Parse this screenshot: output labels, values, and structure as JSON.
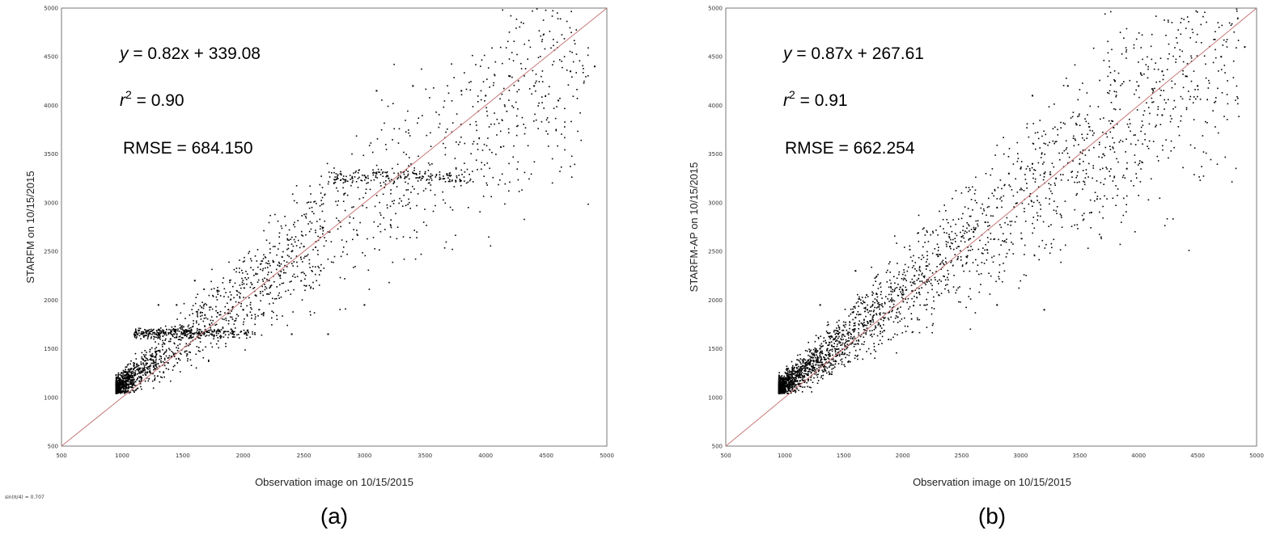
{
  "colors": {
    "reference_line": "#c87878",
    "points": "#000000",
    "frame": "#555555"
  },
  "footnote": "sin(π/4) = 0.707",
  "chart_data": [
    {
      "type": "scatter",
      "panel_label": "(a)",
      "xlabel": "Observation image on 10/15/2015",
      "ylabel": "STARFM on 10/15/2015",
      "xlim": [
        500,
        5000
      ],
      "ylim": [
        500,
        5000
      ],
      "xticks": [
        "500",
        "1000",
        "1500",
        "2000",
        "2500",
        "3000",
        "3500",
        "4000",
        "4500",
        "5000"
      ],
      "yticks": [
        "500",
        "1000",
        "1500",
        "2000",
        "2500",
        "3000",
        "3500",
        "4000",
        "4500",
        "5000"
      ],
      "reference_line": "1:1",
      "annotations": {
        "equation": {
          "lhs": "y",
          "rhs": " = 0.82x + 339.08"
        },
        "r2": {
          "lhs": "r",
          "sup": "2",
          "rhs": " = 0.90"
        },
        "rmse": "RMSE = 684.150"
      },
      "regression": {
        "slope": 0.82,
        "intercept": 339.08
      },
      "points_sample": [
        [
          950,
          1130
        ],
        [
          1000,
          1140
        ],
        [
          1050,
          1180
        ],
        [
          1100,
          1230
        ],
        [
          1150,
          1300
        ],
        [
          1200,
          1350
        ],
        [
          1250,
          1420
        ],
        [
          1300,
          1480
        ],
        [
          1350,
          1550
        ],
        [
          1400,
          1600
        ],
        [
          1450,
          1620
        ],
        [
          1500,
          1650
        ],
        [
          1600,
          1660
        ],
        [
          1700,
          1670
        ],
        [
          1800,
          1680
        ],
        [
          1900,
          1700
        ],
        [
          2000,
          1900
        ],
        [
          2100,
          2050
        ],
        [
          2200,
          2200
        ],
        [
          2300,
          2350
        ],
        [
          2400,
          2500
        ],
        [
          2500,
          2550
        ],
        [
          2600,
          2600
        ],
        [
          2700,
          2700
        ],
        [
          2800,
          2800
        ],
        [
          2900,
          3250
        ],
        [
          3000,
          3280
        ],
        [
          3100,
          3300
        ],
        [
          3200,
          3250
        ],
        [
          3300,
          3260
        ],
        [
          3500,
          3300
        ],
        [
          3700,
          3280
        ],
        [
          4000,
          4100
        ],
        [
          4200,
          4300
        ],
        [
          4400,
          4200
        ],
        [
          4700,
          4350
        ],
        [
          4900,
          4400
        ],
        [
          2400,
          1650
        ],
        [
          2700,
          1650
        ],
        [
          3000,
          1950
        ],
        [
          1300,
          1950
        ],
        [
          1600,
          2200
        ],
        [
          3100,
          4150
        ],
        [
          3400,
          4200
        ],
        [
          3800,
          4150
        ],
        [
          4600,
          4050
        ],
        [
          1100,
          1650
        ],
        [
          1450,
          1950
        ]
      ]
    },
    {
      "type": "scatter",
      "panel_label": "(b)",
      "xlabel": "Observation image on 10/15/2015",
      "ylabel": "STARFM-AP on 10/15/2015",
      "xlim": [
        500,
        5000
      ],
      "ylim": [
        500,
        5000
      ],
      "xticks": [
        "500",
        "1000",
        "1500",
        "2000",
        "2500",
        "3000",
        "3500",
        "4000",
        "4500",
        "5000"
      ],
      "yticks": [
        "500",
        "1000",
        "1500",
        "2000",
        "2500",
        "3000",
        "3500",
        "4000",
        "4500",
        "5000"
      ],
      "reference_line": "1:1",
      "annotations": {
        "equation": {
          "lhs": "y",
          "rhs": " = 0.87x + 267.61"
        },
        "r2": {
          "lhs": "r",
          "sup": "2",
          "rhs": " = 0.91"
        },
        "rmse": "RMSE = 662.254"
      },
      "regression": {
        "slope": 0.87,
        "intercept": 267.61
      },
      "points_sample": [
        [
          950,
          1130
        ],
        [
          1000,
          1160
        ],
        [
          1050,
          1200
        ],
        [
          1100,
          1260
        ],
        [
          1150,
          1320
        ],
        [
          1200,
          1380
        ],
        [
          1250,
          1440
        ],
        [
          1300,
          1500
        ],
        [
          1350,
          1560
        ],
        [
          1400,
          1620
        ],
        [
          1450,
          1680
        ],
        [
          1500,
          1740
        ],
        [
          1600,
          1820
        ],
        [
          1700,
          1900
        ],
        [
          1800,
          1950
        ],
        [
          1900,
          2000
        ],
        [
          2000,
          2100
        ],
        [
          2100,
          2250
        ],
        [
          2200,
          2350
        ],
        [
          2300,
          2450
        ],
        [
          2400,
          2550
        ],
        [
          2500,
          2650
        ],
        [
          2600,
          2700
        ],
        [
          2700,
          2800
        ],
        [
          2800,
          2950
        ],
        [
          2900,
          3300
        ],
        [
          3000,
          3350
        ],
        [
          3100,
          3400
        ],
        [
          3200,
          3300
        ],
        [
          3300,
          3250
        ],
        [
          3500,
          3400
        ],
        [
          3700,
          3500
        ],
        [
          4000,
          4200
        ],
        [
          4200,
          4350
        ],
        [
          4400,
          4300
        ],
        [
          4700,
          4500
        ],
        [
          4900,
          4600
        ],
        [
          3200,
          1900
        ],
        [
          3600,
          2900
        ],
        [
          4200,
          3900
        ],
        [
          1300,
          1950
        ],
        [
          1600,
          2300
        ],
        [
          3100,
          4100
        ],
        [
          3400,
          4200
        ],
        [
          3800,
          4250
        ],
        [
          4500,
          4200
        ],
        [
          2800,
          1950
        ],
        [
          3900,
          3350
        ]
      ]
    }
  ]
}
